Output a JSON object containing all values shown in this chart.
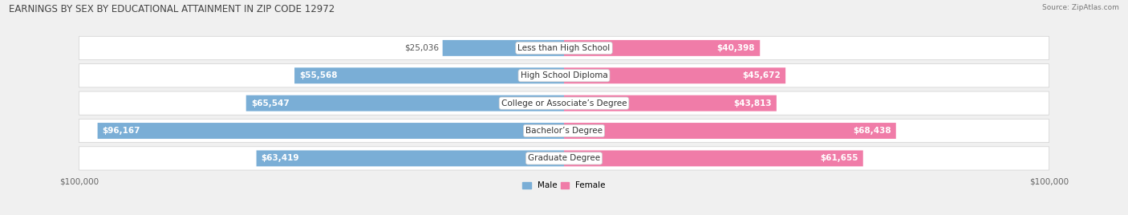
{
  "title": "EARNINGS BY SEX BY EDUCATIONAL ATTAINMENT IN ZIP CODE 12972",
  "source": "Source: ZipAtlas.com",
  "categories": [
    "Less than High School",
    "High School Diploma",
    "College or Associate’s Degree",
    "Bachelor’s Degree",
    "Graduate Degree"
  ],
  "male_values": [
    25036,
    55568,
    65547,
    96167,
    63419
  ],
  "female_values": [
    40398,
    45672,
    43813,
    68438,
    61655
  ],
  "max_value": 100000,
  "male_color": "#7aaed6",
  "female_color": "#f07ca8",
  "male_label": "Male",
  "female_label": "Female",
  "axis_label_left": "$100,000",
  "axis_label_right": "$100,000",
  "background_color": "#f0f0f0",
  "row_colors": [
    "#e8e8e8",
    "#f0f0f0"
  ],
  "title_fontsize": 8.5,
  "bar_height": 0.58,
  "label_fontsize": 7.5,
  "cat_fontsize": 7.5
}
